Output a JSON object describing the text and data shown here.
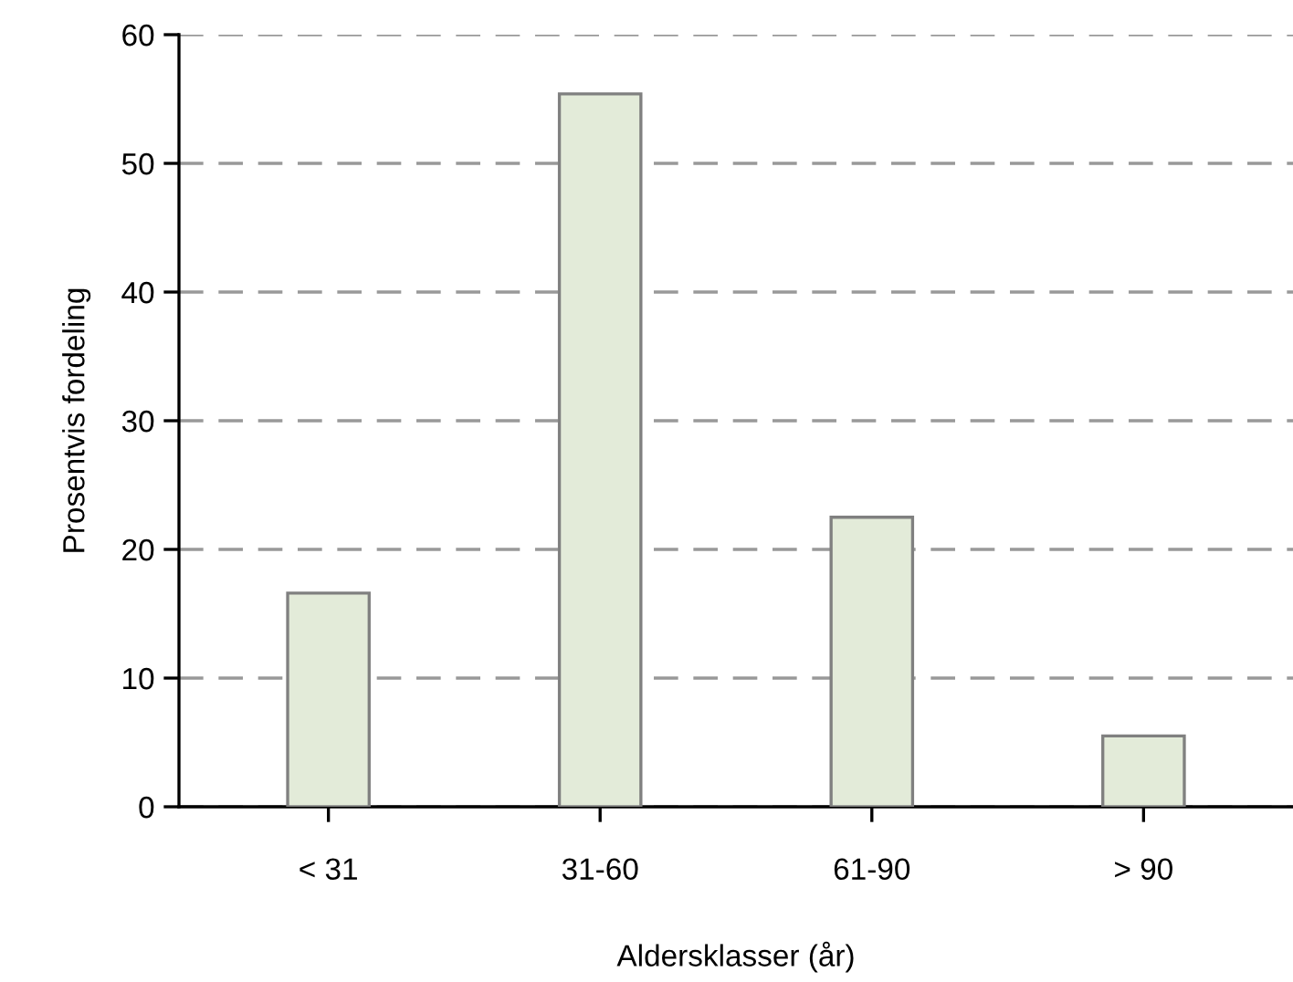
{
  "chart_data": {
    "type": "bar",
    "xlabel": "Aldersklasser (år)",
    "ylabel": "Prosentvis fordeling",
    "categories": [
      "< 31",
      "31-60",
      "61-90",
      "> 90"
    ],
    "values": [
      16.6,
      55.4,
      22.5,
      5.5
    ],
    "color": "#e3ebd9",
    "ylim": [
      0,
      60
    ],
    "yticks": [
      0,
      10,
      20,
      30,
      40,
      50,
      60
    ],
    "grid": "y",
    "line_style": "dashed"
  }
}
